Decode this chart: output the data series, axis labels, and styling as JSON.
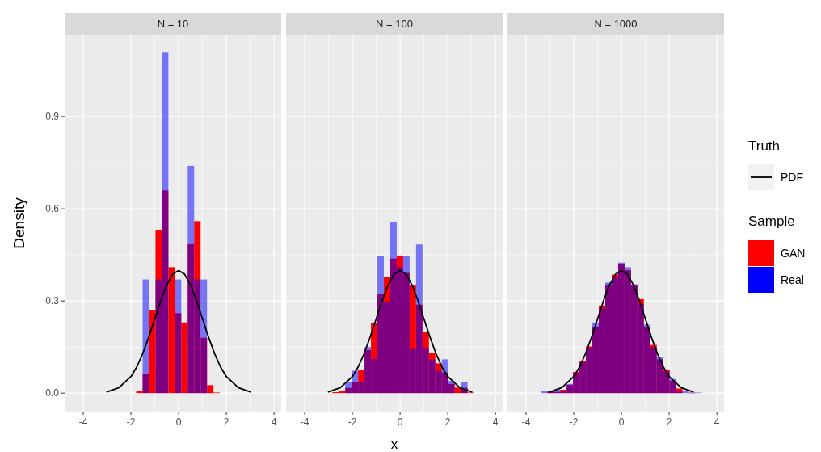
{
  "chart_data": [
    {
      "type": "histogram",
      "title": "N = 10",
      "ylabel": "Density",
      "xlim": [
        -4.78,
        4.3
      ],
      "ylim": [
        -0.06,
        1.166
      ],
      "xticks": [
        -4,
        -2,
        0,
        2,
        4
      ],
      "yticks": [
        {
          "value": 0,
          "label": "0.0"
        },
        {
          "value": 0.3,
          "label": "0.3"
        },
        {
          "value": 0.6,
          "label": "0.6"
        },
        {
          "value": 0.9,
          "label": "0.9"
        }
      ],
      "grid": true,
      "bins": [
        -1.78,
        -1.51,
        -1.24,
        -0.97,
        -0.7,
        -0.43,
        -0.16,
        0.11,
        0.38,
        0.65,
        0.92,
        1.19,
        1.46,
        1.73
      ],
      "series": [
        {
          "color": "#ff0000",
          "values": [
            0.006,
            0.062,
            0.27,
            0.53,
            0.66,
            0.41,
            0.26,
            0.23,
            0.485,
            0.56,
            0.18,
            0.026,
            0.002
          ]
        },
        {
          "color": "#0000ff",
          "values": [
            0,
            0.37,
            0,
            0.37,
            1.11,
            0,
            0.37,
            0,
            0.74,
            0.37,
            0.37,
            0,
            0
          ]
        },
        {
          "type": "line",
          "color": "#000000",
          "x": [
            -3,
            -2.5,
            -2,
            -1.75,
            -1.5,
            -1.25,
            -1,
            -0.75,
            -0.5,
            -0.25,
            0,
            0.25,
            0.5,
            0.75,
            1,
            1.25,
            1.5,
            1.75,
            2,
            2.5,
            3
          ],
          "values": [
            0.004,
            0.018,
            0.054,
            0.086,
            0.13,
            0.183,
            0.242,
            0.301,
            0.352,
            0.387,
            0.399,
            0.387,
            0.352,
            0.301,
            0.242,
            0.183,
            0.13,
            0.086,
            0.054,
            0.018,
            0.004
          ]
        }
      ]
    },
    {
      "type": "histogram",
      "title": "N = 100",
      "xlabel": "x",
      "xlim": [
        -4.78,
        4.3
      ],
      "ylim": [
        -0.06,
        1.166
      ],
      "xticks": [
        -4,
        -2,
        0,
        2,
        4
      ],
      "yticks": [
        0,
        0.3,
        0.6,
        0.9
      ],
      "grid": true,
      "tick_labels": "x",
      "bins": [
        -2.84,
        -2.57,
        -2.3,
        -2.03,
        -1.76,
        -1.49,
        -1.22,
        -0.95,
        -0.68,
        -0.41,
        -0.14,
        0.13,
        0.4,
        0.67,
        0.94,
        1.21,
        1.48,
        1.75,
        2.02,
        2.29,
        2.56,
        2.83,
        3.1
      ],
      "series": [
        {
          "color": "#ff0000",
          "values": [
            0.003,
            0.008,
            0.017,
            0.035,
            0.075,
            0.14,
            0.228,
            0.324,
            0.378,
            0.438,
            0.448,
            0.391,
            0.35,
            0.288,
            0.198,
            0.13,
            0.097,
            0.067,
            0.03,
            0.018,
            0.017,
            0.002
          ]
        },
        {
          "color": "#0000ff",
          "values": [
            0,
            0,
            0.035,
            0.073,
            0.035,
            0.15,
            0.111,
            0.446,
            0.297,
            0.557,
            0.41,
            0.446,
            0.146,
            0.484,
            0.147,
            0.109,
            0.072,
            0.11,
            0.04,
            0,
            0.036,
            0
          ]
        },
        {
          "type": "line",
          "color": "#000000",
          "x": [
            -3,
            -2.5,
            -2,
            -1.75,
            -1.5,
            -1.25,
            -1,
            -0.75,
            -0.5,
            -0.25,
            0,
            0.25,
            0.5,
            0.75,
            1,
            1.25,
            1.5,
            1.75,
            2,
            2.5,
            3
          ],
          "values": [
            0.004,
            0.018,
            0.054,
            0.086,
            0.13,
            0.183,
            0.242,
            0.301,
            0.352,
            0.387,
            0.399,
            0.387,
            0.352,
            0.301,
            0.242,
            0.183,
            0.13,
            0.086,
            0.054,
            0.018,
            0.004
          ]
        }
      ]
    },
    {
      "type": "histogram",
      "title": "N = 1000",
      "xlim": [
        -4.78,
        4.3
      ],
      "ylim": [
        -0.06,
        1.166
      ],
      "xticks": [
        -4,
        -2,
        0,
        2,
        4
      ],
      "yticks": [
        0,
        0.3,
        0.6,
        0.9
      ],
      "grid": true,
      "tick_labels": "x",
      "legend": "right",
      "legend_title": "Sample",
      "annotations": [
        "Truth"
      ],
      "bins": [
        -3.38,
        -3.11,
        -2.84,
        -2.57,
        -2.3,
        -2.03,
        -1.76,
        -1.49,
        -1.22,
        -0.95,
        -0.68,
        -0.41,
        -0.14,
        0.13,
        0.4,
        0.67,
        0.94,
        1.21,
        1.48,
        1.75,
        2.02,
        2.29,
        2.56,
        2.83,
        3.1,
        3.37
      ],
      "series": [
        {
          "name": "GAN",
          "color": "#ff0000",
          "values": [
            null,
            0.005,
            0.004,
            0.011,
            0.027,
            0.069,
            0.103,
            0.152,
            0.215,
            0.285,
            0.35,
            0.386,
            0.42,
            0.4,
            0.35,
            0.306,
            0.215,
            0.157,
            0.11,
            0.077,
            0.04,
            0.015,
            null,
            0.001,
            0
          ]
        },
        {
          "name": "Real",
          "color": "#0000ff",
          "values": [
            0.006,
            0.008,
            0.012,
            0.005,
            0.03,
            0.065,
            0.1,
            0.148,
            0.23,
            0.275,
            0.36,
            0.376,
            0.425,
            0.41,
            0.354,
            0.29,
            0.223,
            0.15,
            0.118,
            0.07,
            0.046,
            0.005,
            0.008,
            0.002,
            0.002
          ]
        },
        {
          "type": "line",
          "name": "PDF",
          "color": "#000000",
          "x": [
            -3,
            -2.5,
            -2,
            -1.75,
            -1.5,
            -1.25,
            -1,
            -0.75,
            -0.5,
            -0.25,
            0,
            0.25,
            0.5,
            0.75,
            1,
            1.25,
            1.5,
            1.75,
            2,
            2.5,
            3
          ],
          "values": [
            0.004,
            0.018,
            0.054,
            0.086,
            0.13,
            0.183,
            0.242,
            0.301,
            0.352,
            0.387,
            0.399,
            0.387,
            0.352,
            0.301,
            0.242,
            0.183,
            0.13,
            0.086,
            0.054,
            0.018,
            0.004
          ]
        }
      ]
    }
  ]
}
